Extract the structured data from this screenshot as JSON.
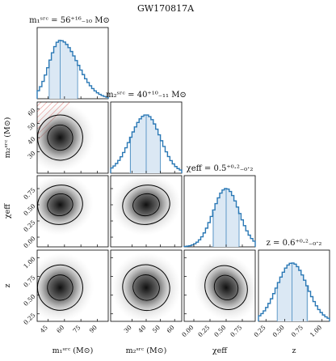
{
  "chart_data": {
    "type": "corner",
    "title": "GW170817A",
    "colors": {
      "hist": "#2a78b5",
      "hist_fill": "#dbe8f4",
      "contour": "#000000",
      "excluded_hatch": "#d9534f"
    },
    "parameters": [
      {
        "key": "m1",
        "label": "m₁ˢʳᶜ (M⊙)",
        "title": "m₁ˢʳᶜ = 56⁺¹⁶₋₁₀ M⊙",
        "median": 56,
        "lower": 46,
        "upper": 72,
        "range": [
          35,
          100
        ],
        "ticks": [
          45,
          60,
          75,
          90
        ],
        "tick_labels": [
          "45",
          "60",
          "75",
          "90"
        ],
        "ylabel": ""
      },
      {
        "key": "m2",
        "label": "m₂ˢʳᶜ (M⊙)",
        "title": "m₂ˢʳᶜ = 40⁺¹⁰₋₁₁ M⊙",
        "median": 40,
        "lower": 29,
        "upper": 50,
        "range": [
          15,
          65
        ],
        "ticks": [
          30,
          40,
          50,
          60
        ],
        "tick_labels": [
          "30",
          "40",
          "50",
          "60"
        ],
        "ylabel": "m₂ˢʳᶜ (M⊙)"
      },
      {
        "key": "chi",
        "label": "χeff",
        "title": "χeff = 0.5⁺⁰·²₋₀·₂",
        "median": 0.5,
        "lower": 0.3,
        "upper": 0.7,
        "range": [
          -0.15,
          0.95
        ],
        "ticks": [
          0.0,
          0.25,
          0.5,
          0.75
        ],
        "tick_labels": [
          "0.00",
          "0.25",
          "0.50",
          "0.75"
        ],
        "ylabel": "χeff"
      },
      {
        "key": "z",
        "label": "z",
        "title": "z = 0.6⁺⁰·²₋₀·₂",
        "median": 0.6,
        "lower": 0.4,
        "upper": 0.8,
        "range": [
          0.15,
          1.1
        ],
        "ticks": [
          0.25,
          0.5,
          0.75,
          1.0
        ],
        "tick_labels": [
          "0.25",
          "0.50",
          "0.75",
          "1.00"
        ],
        "ylabel": "z"
      }
    ]
  }
}
